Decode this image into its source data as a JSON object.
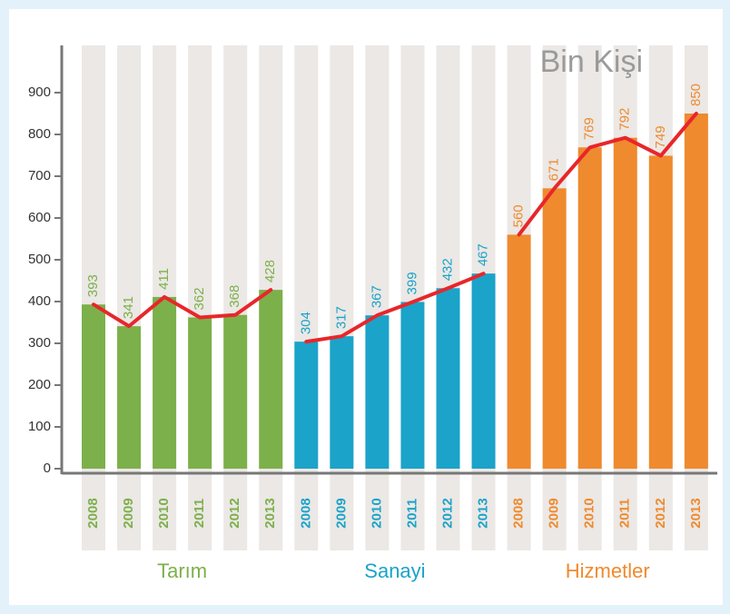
{
  "chart_data": {
    "type": "bar",
    "unit_label": "Bin Kişi",
    "groups": [
      {
        "name": "Tarım",
        "color": "#7cb04a",
        "categories": [
          "2008",
          "2009",
          "2010",
          "2011",
          "2012",
          "2013"
        ],
        "values": [
          393,
          341,
          411,
          362,
          368,
          428
        ]
      },
      {
        "name": "Sanayi",
        "color": "#1ba3c9",
        "categories": [
          "2008",
          "2009",
          "2010",
          "2011",
          "2012",
          "2013"
        ],
        "values": [
          304,
          317,
          367,
          399,
          432,
          467
        ]
      },
      {
        "name": "Hizmetler",
        "color": "#ef8a2e",
        "categories": [
          "2008",
          "2009",
          "2010",
          "2011",
          "2012",
          "2013"
        ],
        "values": [
          560,
          671,
          769,
          792,
          749,
          850
        ]
      }
    ],
    "line_color": "#e8262a",
    "column_color": "#ebe8e5",
    "ylim": [
      0,
      1000
    ],
    "yticks": [
      0,
      100,
      200,
      300,
      400,
      500,
      600,
      700,
      800,
      900
    ]
  }
}
